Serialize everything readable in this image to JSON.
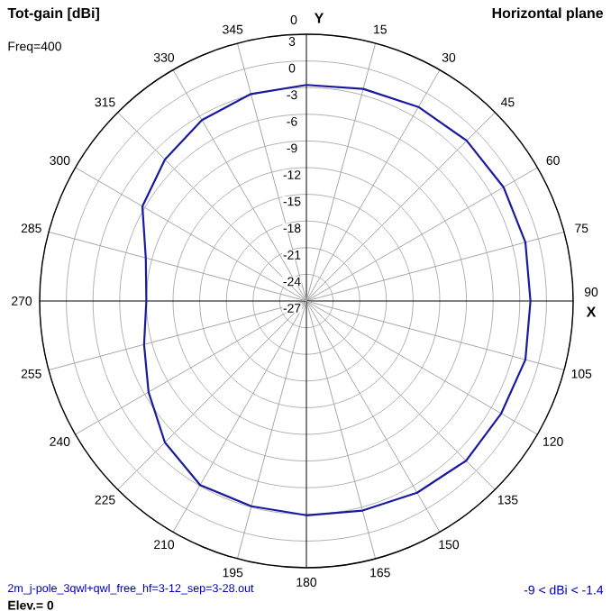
{
  "chart_data": {
    "type": "radar",
    "title": "Tot-gain [dBi]",
    "subtitle": "Horizontal plane",
    "xlabel": "X",
    "ylabel": "Y",
    "annotations": [
      "Freq=400",
      "2m_j-pole_3qwl+qwl_free_hf=3-12_sep=3-28.out",
      "-9 < dBi < -1.4",
      "Elev.= 0"
    ],
    "categories": [
      "0",
      "15",
      "30",
      "45",
      "60",
      "75",
      "90",
      "105",
      "120",
      "135",
      "150",
      "165",
      "180",
      "195",
      "210",
      "225",
      "240",
      "255",
      "270",
      "285",
      "300",
      "315",
      "330",
      "345"
    ],
    "series": [
      {
        "color": "#1a1aa0",
        "values": [
          -2.7,
          -2.3,
          -1.8,
          -1.5,
          -1.4,
          -1.5,
          -1.8,
          -1.5,
          -1.7,
          -1.6,
          -2.1,
          -2.6,
          -2.9,
          -3.1,
          -3.1,
          -4.5,
          -6.5,
          -8.1,
          -9.0,
          -8.3,
          -5.7,
          -4.5,
          -3.5,
          -2.9
        ]
      }
    ],
    "ylim": [
      -27,
      3
    ],
    "yticks": [
      3,
      0,
      -3,
      -6,
      -9,
      -12,
      -15,
      -18,
      -21,
      -24,
      -27
    ],
    "grid": true,
    "marker": "none",
    "line_style": "solid"
  }
}
